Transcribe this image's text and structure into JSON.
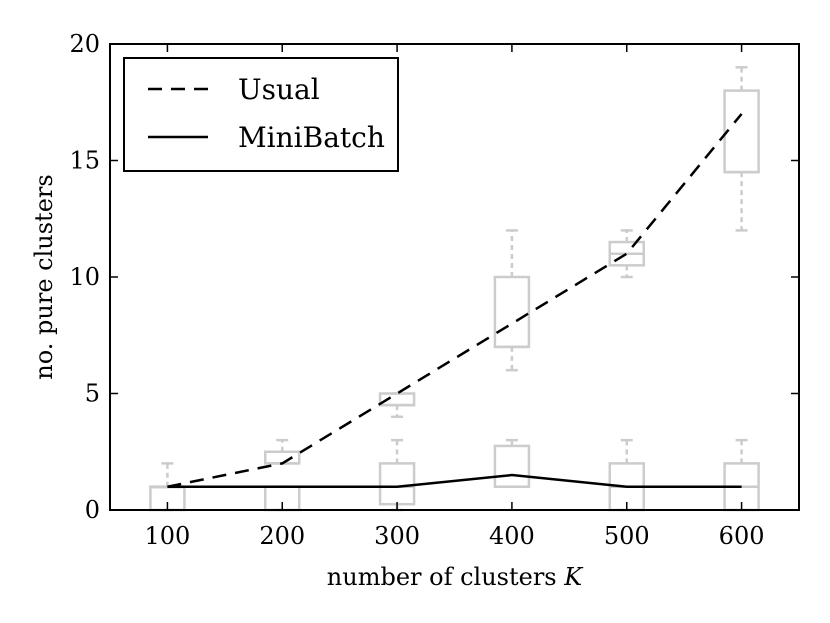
{
  "chart_data": {
    "type": "line",
    "xlabel": "number of clusters",
    "xlabel_var": "K",
    "ylabel": "no. pure clusters",
    "xlim": [
      50,
      650
    ],
    "ylim": [
      0,
      20
    ],
    "x_ticks": [
      100,
      200,
      300,
      400,
      500,
      600
    ],
    "y_ticks": [
      0,
      5,
      10,
      15,
      20
    ],
    "grid": false,
    "legend": "top-left",
    "x": [
      100,
      200,
      300,
      400,
      500,
      600
    ],
    "series": [
      {
        "name": "Usual",
        "style": "dashed",
        "color": "#000000",
        "values": [
          1,
          2,
          5,
          8,
          11,
          17
        ]
      },
      {
        "name": "MiniBatch",
        "style": "solid",
        "color": "#000000",
        "values": [
          1,
          1,
          1,
          1.5,
          1,
          1
        ]
      }
    ],
    "boxplots": {
      "color": "#cccccc",
      "groups": [
        {
          "series": "Usual",
          "boxes": [
            {
              "x": 100,
              "whislo": 1,
              "q1": 1,
              "med": 1,
              "q3": 1,
              "whishi": 2
            },
            {
              "x": 200,
              "whislo": 2,
              "q1": 2,
              "med": 2,
              "q3": 2.5,
              "whishi": 3
            },
            {
              "x": 300,
              "whislo": 4,
              "q1": 4.5,
              "med": 4.5,
              "q3": 5,
              "whishi": 5
            },
            {
              "x": 400,
              "whislo": 6,
              "q1": 7,
              "med": 7,
              "q3": 10,
              "whishi": 12
            },
            {
              "x": 500,
              "whislo": 10,
              "q1": 10.5,
              "med": 11,
              "q3": 11.5,
              "whishi": 12
            },
            {
              "x": 600,
              "whislo": 12,
              "q1": 14.5,
              "med": 14.5,
              "q3": 18,
              "whishi": 19
            }
          ]
        },
        {
          "series": "MiniBatch",
          "boxes": [
            {
              "x": 100,
              "whislo": 0,
              "q1": 0,
              "med": 1,
              "q3": 1,
              "whishi": 1
            },
            {
              "x": 200,
              "whislo": 0,
              "q1": 0,
              "med": 1,
              "q3": 1,
              "whishi": 1
            },
            {
              "x": 300,
              "whislo": 0,
              "q1": 0.25,
              "med": 1,
              "q3": 2,
              "whishi": 3
            },
            {
              "x": 400,
              "whislo": 1,
              "q1": 1,
              "med": 1,
              "q3": 2.75,
              "whishi": 3
            },
            {
              "x": 500,
              "whislo": 0,
              "q1": 0,
              "med": 1,
              "q3": 2,
              "whishi": 3
            },
            {
              "x": 600,
              "whislo": 0,
              "q1": 0,
              "med": 1,
              "q3": 2,
              "whishi": 3
            }
          ]
        }
      ]
    }
  }
}
